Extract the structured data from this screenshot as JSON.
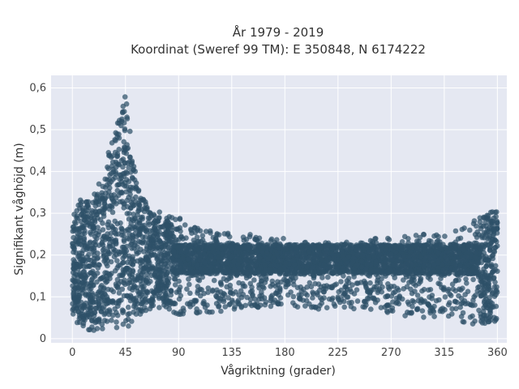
{
  "chart_data": {
    "type": "scatter",
    "title_line1": "År 1979 - 2019",
    "title_line2": "Koordinat (Sweref 99 TM): E 350848, N 6174222",
    "xlabel": "Vågriktning (grader)",
    "ylabel": "Signifikant våghöjd (m)",
    "xlim": [
      -18,
      368
    ],
    "ylim": [
      -0.01,
      0.63
    ],
    "x_ticks": [
      0,
      45,
      90,
      135,
      180,
      225,
      270,
      315,
      360
    ],
    "x_tick_labels": [
      "0",
      "45",
      "90",
      "135",
      "180",
      "225",
      "270",
      "315",
      "360"
    ],
    "y_ticks": [
      0,
      0.1,
      0.2,
      0.3,
      0.4,
      0.5,
      0.6
    ],
    "y_tick_labels": [
      "0",
      "0,1",
      "0,2",
      "0,3",
      "0,4",
      "0,5",
      "0,6"
    ],
    "grid": true,
    "legend": "none",
    "marker_color": "#2e5068",
    "plot_background": "#e5e8f2",
    "density_envelope": {
      "x": [
        0,
        5,
        10,
        15,
        20,
        25,
        30,
        35,
        40,
        45,
        50,
        55,
        60,
        70,
        80,
        90,
        100,
        120,
        135,
        150,
        180,
        200,
        225,
        250,
        270,
        290,
        315,
        330,
        345,
        355,
        360
      ],
      "upper": [
        0.31,
        0.33,
        0.34,
        0.35,
        0.36,
        0.38,
        0.44,
        0.52,
        0.57,
        0.6,
        0.47,
        0.38,
        0.35,
        0.31,
        0.3,
        0.29,
        0.27,
        0.26,
        0.25,
        0.25,
        0.24,
        0.23,
        0.23,
        0.24,
        0.24,
        0.25,
        0.25,
        0.27,
        0.29,
        0.31,
        0.32
      ],
      "lower": [
        0.04,
        0.03,
        0.02,
        0.02,
        0.02,
        0.02,
        0.02,
        0.02,
        0.02,
        0.02,
        0.02,
        0.03,
        0.05,
        0.07,
        0.06,
        0.05,
        0.06,
        0.06,
        0.07,
        0.07,
        0.08,
        0.07,
        0.07,
        0.06,
        0.06,
        0.05,
        0.05,
        0.04,
        0.03,
        0.03,
        0.03
      ]
    }
  }
}
